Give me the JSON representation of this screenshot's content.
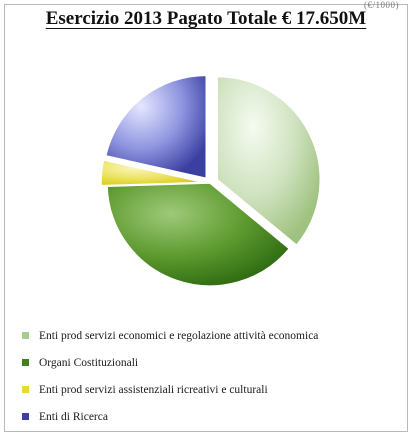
{
  "corner_fragment": "(€/1000)",
  "chart_data": {
    "type": "pie",
    "title": "Esercizio 2013 Pagato Totale € 17.650M",
    "legend_position": "bottom",
    "exploded": true,
    "slices": [
      {
        "label": "Enti prod servizi economici e regolazione attività economica",
        "value": 36,
        "color": "#a9cc90"
      },
      {
        "label": "Organi Costituzionali",
        "value": 38.5,
        "color": "#3f7f1d"
      },
      {
        "label": "Enti prod servizi assistenziali ricreativi e culturali",
        "value": 4,
        "color": "#e6dc2a"
      },
      {
        "label": "Enti di Ricerca",
        "value": 21.5,
        "color": "#3d3fa3"
      }
    ]
  }
}
